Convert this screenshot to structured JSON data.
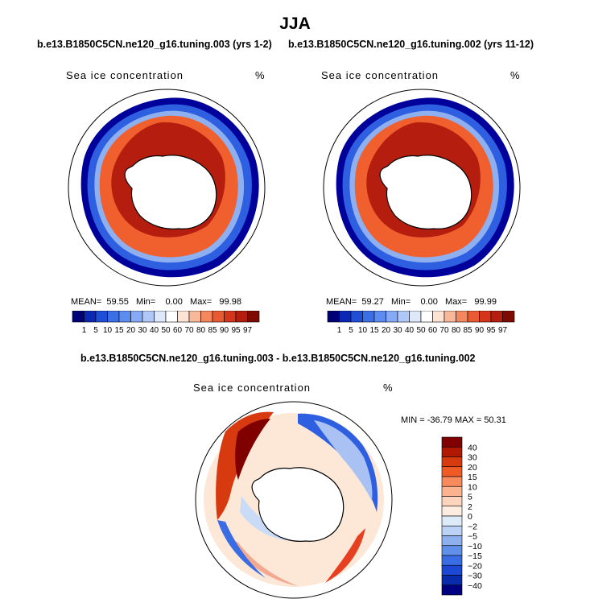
{
  "figure": {
    "title": "JJA",
    "panels": [
      {
        "subtitle": "b.e13.B1850C5CN.ne120_g16.tuning.003 (yrs 1-2)",
        "label": "Sea ice concentration",
        "units": "%",
        "mean_label": "MEAN=",
        "mean": "59.55",
        "min_label": "Min=",
        "min": "0.00",
        "max_label": "Max=",
        "max": "99.98"
      },
      {
        "subtitle": "b.e13.B1850C5CN.ne120_g16.tuning.002 (yrs 11-12)",
        "label": "Sea ice concentration",
        "units": "%",
        "mean_label": "MEAN=",
        "mean": "59.27",
        "min_label": "Min=",
        "min": "0.00",
        "max_label": "Max=",
        "max": "99.99"
      }
    ],
    "diff": {
      "subtitle": "b.e13.B1850C5CN.ne120_g16.tuning.003 - b.e13.B1850C5CN.ne120_g16.tuning.002",
      "label": "Sea ice concentration",
      "units": "%",
      "range_text": "MIN = -36.79 MAX =  50.31"
    }
  },
  "chart_data": [
    {
      "type": "heatmap",
      "title": "Sea ice concentration",
      "subtitle": "b.e13.B1850C5CN.ne120_g16.tuning.003 (yrs 1-2)",
      "units": "%",
      "projection": "south polar stereographic",
      "season": "JJA",
      "mean": 59.55,
      "min": 0.0,
      "max": 99.98,
      "colorbar_levels": [
        1,
        5,
        10,
        15,
        20,
        30,
        40,
        50,
        60,
        70,
        80,
        85,
        90,
        95,
        97
      ],
      "colorbar_tick_labels": [
        "1",
        "5",
        "10",
        "15",
        "20",
        "30",
        "40",
        "50",
        "60",
        "70",
        "80",
        "85",
        "90",
        "95",
        "97"
      ],
      "colorbar_colors": [
        "#000077",
        "#0a28b4",
        "#1f4fd6",
        "#3a6fe6",
        "#5d8cf0",
        "#86aaf5",
        "#b0c8f8",
        "#dde8fb",
        "#ffffff",
        "#fde3d3",
        "#f9b89a",
        "#f4875e",
        "#ea5a32",
        "#d4361b",
        "#b51e0e",
        "#7e0a02"
      ]
    },
    {
      "type": "heatmap",
      "title": "Sea ice concentration",
      "subtitle": "b.e13.B1850C5CN.ne120_g16.tuning.002 (yrs 11-12)",
      "units": "%",
      "projection": "south polar stereographic",
      "season": "JJA",
      "mean": 59.27,
      "min": 0.0,
      "max": 99.99,
      "colorbar_levels": [
        1,
        5,
        10,
        15,
        20,
        30,
        40,
        50,
        60,
        70,
        80,
        85,
        90,
        95,
        97
      ],
      "colorbar_tick_labels": [
        "1",
        "5",
        "10",
        "15",
        "20",
        "30",
        "40",
        "50",
        "60",
        "70",
        "80",
        "85",
        "90",
        "95",
        "97"
      ],
      "colorbar_colors": [
        "#000077",
        "#0a28b4",
        "#1f4fd6",
        "#3a6fe6",
        "#5d8cf0",
        "#86aaf5",
        "#b0c8f8",
        "#dde8fb",
        "#ffffff",
        "#fde3d3",
        "#f9b89a",
        "#f4875e",
        "#ea5a32",
        "#d4361b",
        "#b51e0e",
        "#7e0a02"
      ]
    },
    {
      "type": "heatmap",
      "title": "Sea ice concentration",
      "subtitle": "b.e13.B1850C5CN.ne120_g16.tuning.003 - b.e13.B1850C5CN.ne120_g16.tuning.002",
      "units": "%",
      "projection": "south polar stereographic",
      "season": "JJA",
      "min": -36.79,
      "max": 50.31,
      "colorbar_levels": [
        40,
        30,
        20,
        15,
        10,
        5,
        2,
        0,
        -2,
        -5,
        -10,
        -15,
        -20,
        -30,
        -40
      ],
      "colorbar_tick_labels": [
        "40",
        "30",
        "20",
        "15",
        "10",
        "5",
        "2",
        "0",
        "−2",
        "−5",
        "−10",
        "−15",
        "−20",
        "−30",
        "−40"
      ],
      "colorbar_colors": [
        "#800000",
        "#b01800",
        "#d83a10",
        "#ef5a25",
        "#f88a5e",
        "#fbb38f",
        "#fcd3bb",
        "#fdece0",
        "#ddeaf8",
        "#bcd2f4",
        "#8fb0ee",
        "#6090ea",
        "#3a6de4",
        "#1c48d4",
        "#0a2aac",
        "#000080"
      ]
    }
  ]
}
